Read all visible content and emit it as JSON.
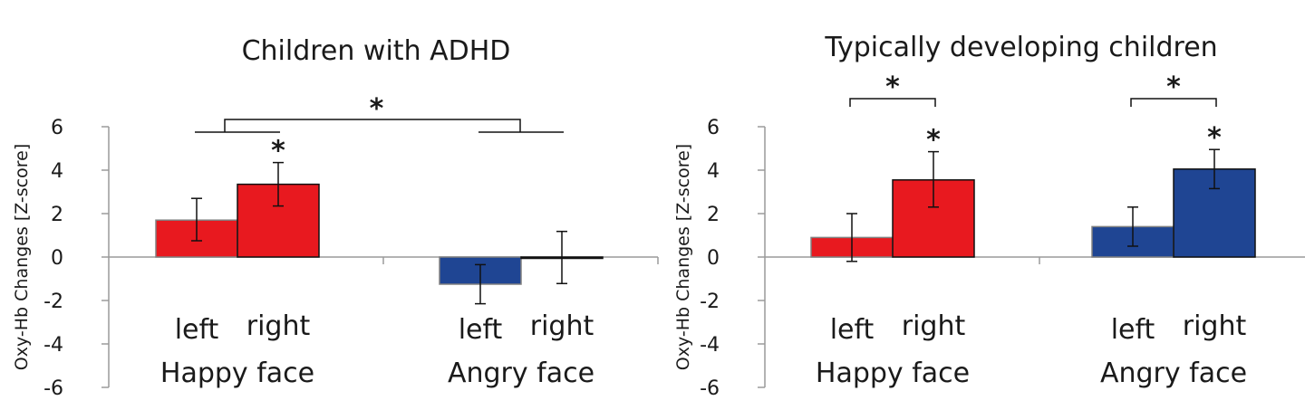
{
  "chart_data": [
    {
      "type": "bar",
      "title": "Children with ADHD",
      "ylabel": "Oxy-Hb Changes  [Z-score]",
      "xlabel": "",
      "ylim": [
        -6,
        6
      ],
      "yticks": [
        "6",
        "4",
        "2",
        "0",
        "-2",
        "-4",
        "-6"
      ],
      "groups": [
        {
          "label": "Happy face",
          "bars": [
            {
              "category": "left",
              "value": 1.7,
              "err_low": 0.95,
              "err_high": 1.0,
              "color": "#e8191f",
              "star": ""
            },
            {
              "category": "right",
              "value": 3.35,
              "err_low": 1.0,
              "err_high": 1.0,
              "color": "#e8191f",
              "star": "*"
            }
          ]
        },
        {
          "label": "Angry face",
          "bars": [
            {
              "category": "left",
              "value": -1.25,
              "err_low": 0.9,
              "err_high": 0.9,
              "color": "#1f4593",
              "star": ""
            },
            {
              "category": "right",
              "value": -0.02,
              "err_low": 1.2,
              "err_high": 1.2,
              "color": "#1f4593",
              "star": ""
            }
          ]
        }
      ],
      "brackets": [
        {
          "type": "between-groups",
          "label": "*"
        }
      ]
    },
    {
      "type": "bar",
      "title": "Typically developing children",
      "ylabel": "Oxy-Hb Changes  [Z-score]",
      "xlabel": "",
      "ylim": [
        -6,
        6
      ],
      "yticks": [
        "6",
        "4",
        "2",
        "0",
        "-2",
        "-4",
        "-6"
      ],
      "groups": [
        {
          "label": "Happy face",
          "bars": [
            {
              "category": "left",
              "value": 0.9,
              "err_low": 1.1,
              "err_high": 1.1,
              "color": "#e8191f",
              "star": ""
            },
            {
              "category": "right",
              "value": 3.55,
              "err_low": 1.25,
              "err_high": 1.3,
              "color": "#e8191f",
              "star": "*"
            }
          ]
        },
        {
          "label": "Angry face",
          "bars": [
            {
              "category": "left",
              "value": 1.4,
              "err_low": 0.9,
              "err_high": 0.9,
              "color": "#1f4593",
              "star": ""
            },
            {
              "category": "right",
              "value": 4.05,
              "err_low": 0.9,
              "err_high": 0.9,
              "color": "#1f4593",
              "star": "*"
            }
          ]
        }
      ],
      "brackets": [
        {
          "type": "within-group",
          "group": 0,
          "label": "*"
        },
        {
          "type": "within-group",
          "group": 1,
          "label": "*"
        }
      ]
    }
  ]
}
